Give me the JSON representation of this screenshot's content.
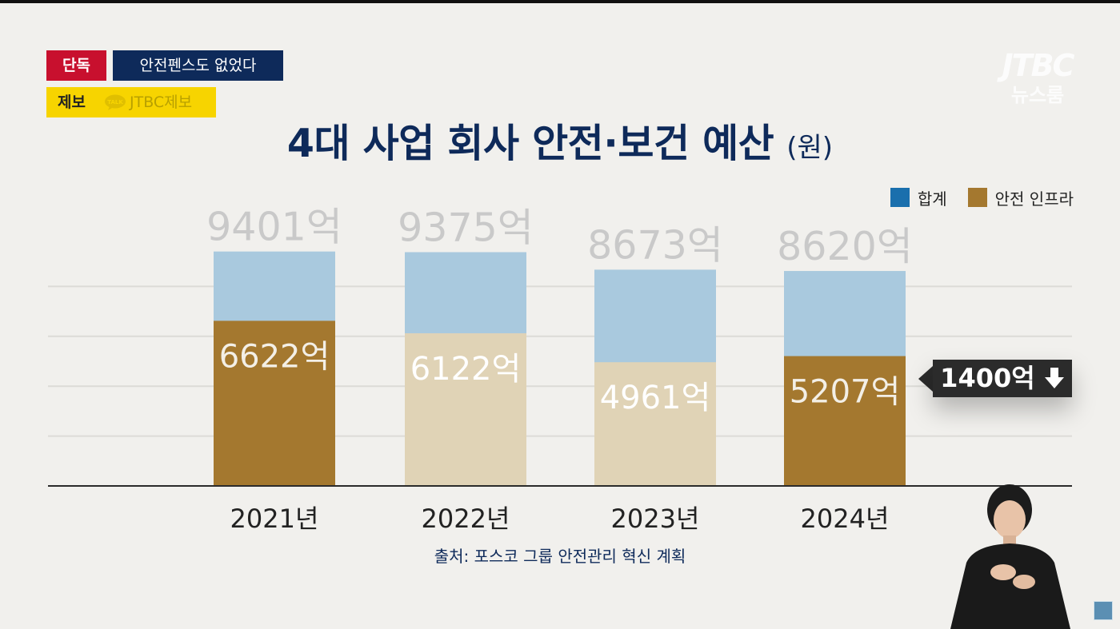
{
  "tags": {
    "exclusive": "단독",
    "headline": "안전펜스도 없었다",
    "tip_label": "제보",
    "tip_icon": "talk-bubble-icon",
    "tip_channel": "JTBC제보"
  },
  "logo": {
    "line1": "JTBC",
    "line2": "뉴스룸"
  },
  "colors": {
    "total": "#a9c9de",
    "infra_highlight": "#a4782f",
    "infra_faded": "#e0d3b6",
    "legend_total": "#1a6fad",
    "legend_infra": "#a4782f",
    "title": "#0e2a5a"
  },
  "chart_data": {
    "type": "bar",
    "title": "4대 사업 회사 안전·보건 예산",
    "unit": "(원)",
    "categories": [
      "2021년",
      "2022년",
      "2023년",
      "2024년"
    ],
    "series": [
      {
        "name": "합계",
        "values": [
          9401,
          9375,
          8673,
          8620
        ],
        "labels": [
          "9401억",
          "9375억",
          "8673억",
          "8620억"
        ]
      },
      {
        "name": "안전 인프라",
        "values": [
          6622,
          6122,
          4961,
          5207
        ],
        "labels": [
          "6622억",
          "6122억",
          "4961억",
          "5207억"
        ],
        "highlighted": [
          true,
          false,
          false,
          true
        ]
      }
    ],
    "annotation": {
      "text": "1400억",
      "icon": "down-arrow-icon"
    },
    "ylim": [
      0,
      10000
    ],
    "grid": true,
    "legend_position": "top-right",
    "source": "출처: 포스코 그룹 안전관리 혁신 계획"
  }
}
